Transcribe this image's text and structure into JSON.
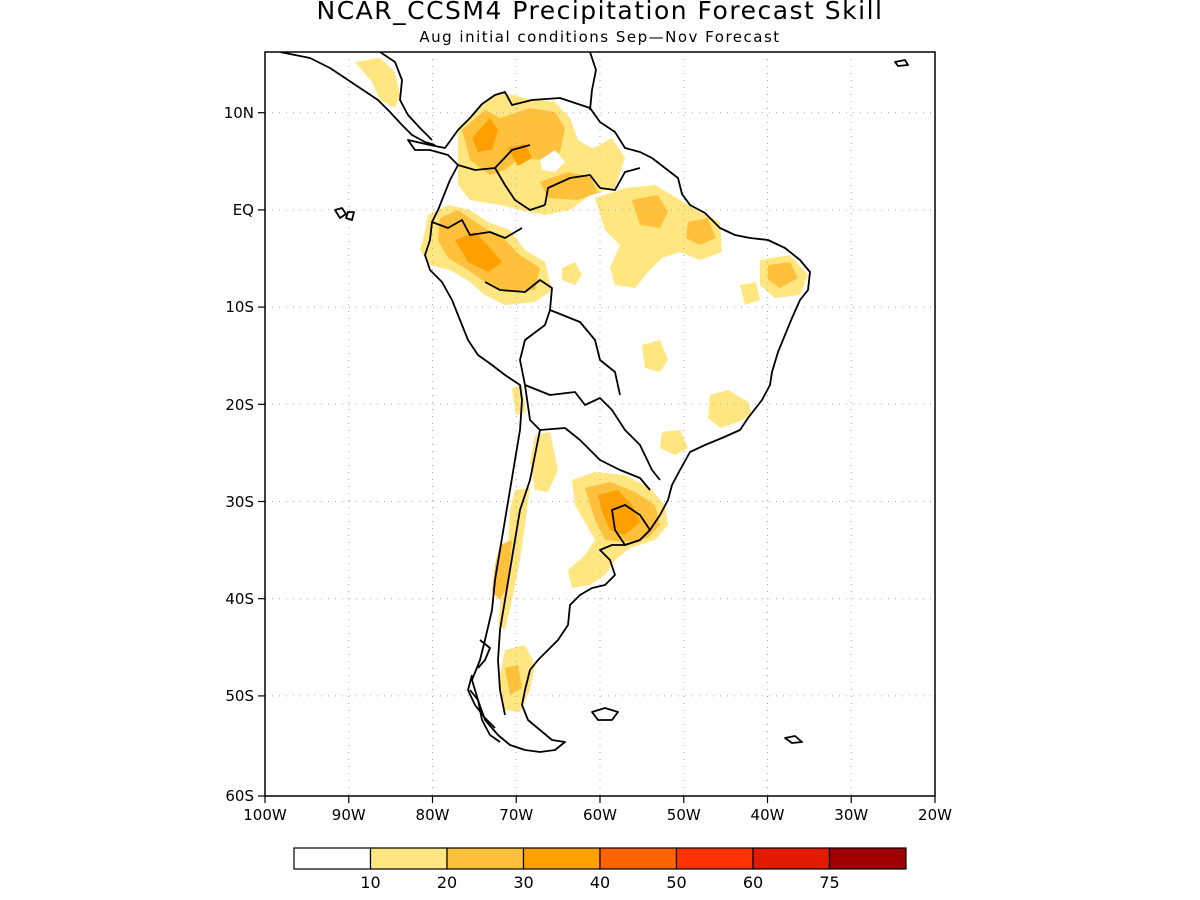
{
  "title": "NCAR_CCSM4 Precipitation Forecast Skill",
  "subtitle": "Aug initial conditions  Sep—Nov Forecast",
  "map": {
    "lon_range": [
      -100,
      -20
    ],
    "lat_range": [
      -60,
      15
    ],
    "lon_ticks": [
      "100W",
      "90W",
      "80W",
      "70W",
      "60W",
      "50W",
      "40W",
      "30W",
      "20W"
    ],
    "lat_ticks": [
      "10N",
      "EQ",
      "10S",
      "20S",
      "30S",
      "40S",
      "50S",
      "60S"
    ],
    "grid": "dotted",
    "skill_colors": {
      "10-20": "#ffe680",
      "20-30": "#ffc13c",
      "30-40": "#ffa000",
      "40-50": "#ff6300"
    }
  },
  "colorbar": {
    "labels": [
      "10",
      "20",
      "30",
      "40",
      "50",
      "60",
      "75"
    ],
    "colors": [
      "#ffffff",
      "#ffe680",
      "#ffc13c",
      "#ffa000",
      "#ff6300",
      "#ff3300",
      "#e01b00",
      "#a00000"
    ]
  }
}
